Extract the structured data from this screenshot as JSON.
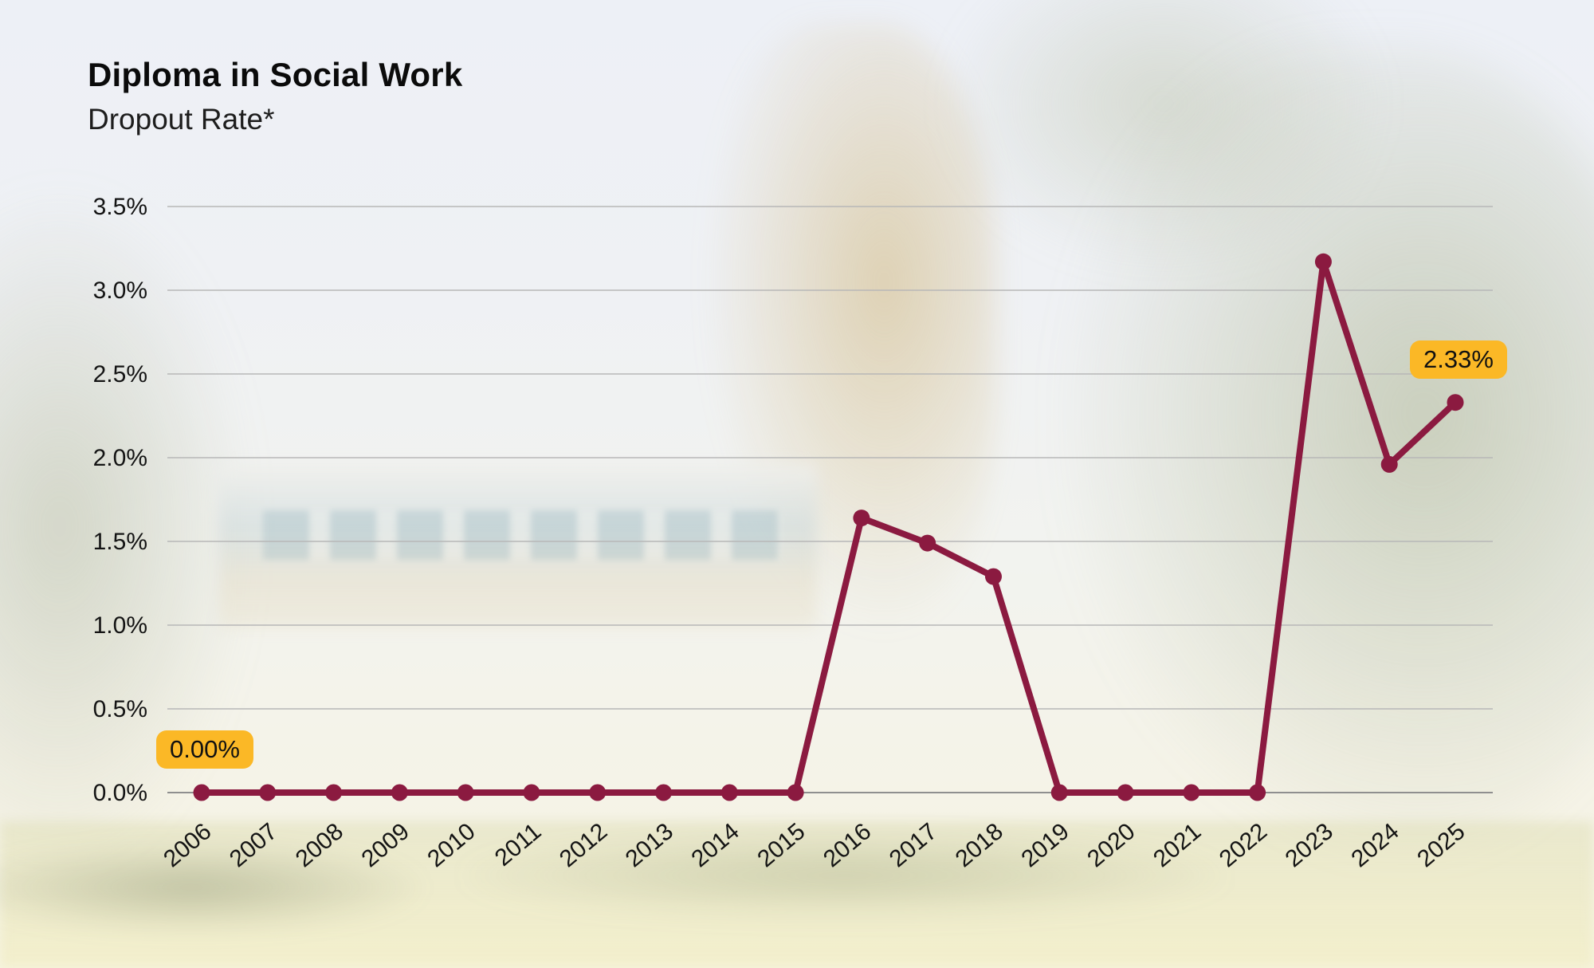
{
  "header": {
    "title": "Diploma in Social Work",
    "subtitle": "Dropout Rate*"
  },
  "chart_data": {
    "type": "line",
    "title": "Diploma in Social Work",
    "subtitle": "Dropout Rate*",
    "categories": [
      "2006",
      "2007",
      "2008",
      "2009",
      "2010",
      "2011",
      "2012",
      "2013",
      "2014",
      "2015",
      "2016",
      "2017",
      "2018",
      "2019",
      "2020",
      "2021",
      "2022",
      "2023",
      "2024",
      "2025"
    ],
    "series": [
      {
        "name": "Dropout Rate",
        "values": [
          0,
          0,
          0,
          0,
          0,
          0,
          0,
          0,
          0,
          0,
          1.64,
          1.49,
          1.29,
          0,
          0,
          0,
          0,
          3.17,
          1.96,
          2.33
        ]
      }
    ],
    "xlabel": "",
    "ylabel": "",
    "ylim": [
      0,
      3.5
    ],
    "grid": true,
    "legend_position": "none",
    "yticks": [
      {
        "value": 0,
        "label": "0.0%"
      },
      {
        "value": 0.5,
        "label": "0.5%"
      },
      {
        "value": 1,
        "label": "1.0%"
      },
      {
        "value": 1.5,
        "label": "1.5%"
      },
      {
        "value": 2,
        "label": "2.0%"
      },
      {
        "value": 2.5,
        "label": "2.5%"
      },
      {
        "value": 3,
        "label": "3.0%"
      },
      {
        "value": 3.5,
        "label": "3.5%"
      }
    ],
    "annotations": [
      {
        "category": "2006",
        "text": "0.00%"
      },
      {
        "category": "2025",
        "text": "2.33%"
      }
    ],
    "colors": {
      "line": "#8B1A40",
      "point": "#8B1A40",
      "gridline": "#b7b7b7",
      "axis_line": "#8f8f8f",
      "tick_text": "#141414",
      "annotation_bg": "#FBB826",
      "annotation_text": "#111111"
    }
  }
}
